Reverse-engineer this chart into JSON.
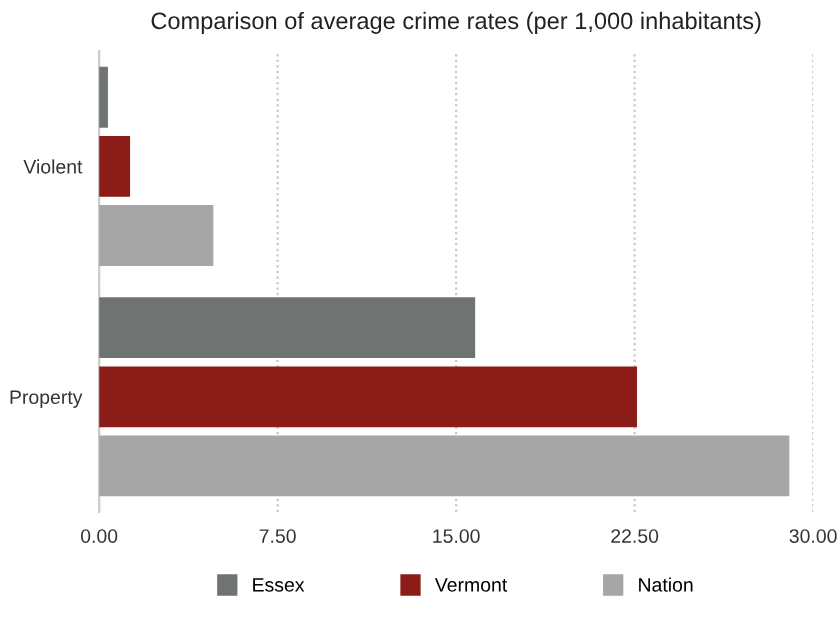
{
  "chart_data": {
    "type": "bar",
    "orientation": "horizontal",
    "title": "Comparison of average crime rates (per 1,000 inhabitants)",
    "categories": [
      "Violent",
      "Property"
    ],
    "series": [
      {
        "name": "Essex",
        "color": "#6f7472",
        "values": [
          0.37,
          15.8
        ]
      },
      {
        "name": "Vermont",
        "color": "#8b1c17",
        "values": [
          1.3,
          22.6
        ]
      },
      {
        "name": "Nation",
        "color": "#a6a6a6",
        "values": [
          4.8,
          29.0
        ]
      }
    ],
    "xlim": [
      0,
      30
    ],
    "xticks": [
      {
        "value": 0,
        "label": "0.00"
      },
      {
        "value": 7.5,
        "label": "7.50"
      },
      {
        "value": 15,
        "label": "15.00"
      },
      {
        "value": 22.5,
        "label": "22.50"
      },
      {
        "value": 30,
        "label": "30.00"
      }
    ],
    "grid": "x",
    "legend": "bottom"
  }
}
